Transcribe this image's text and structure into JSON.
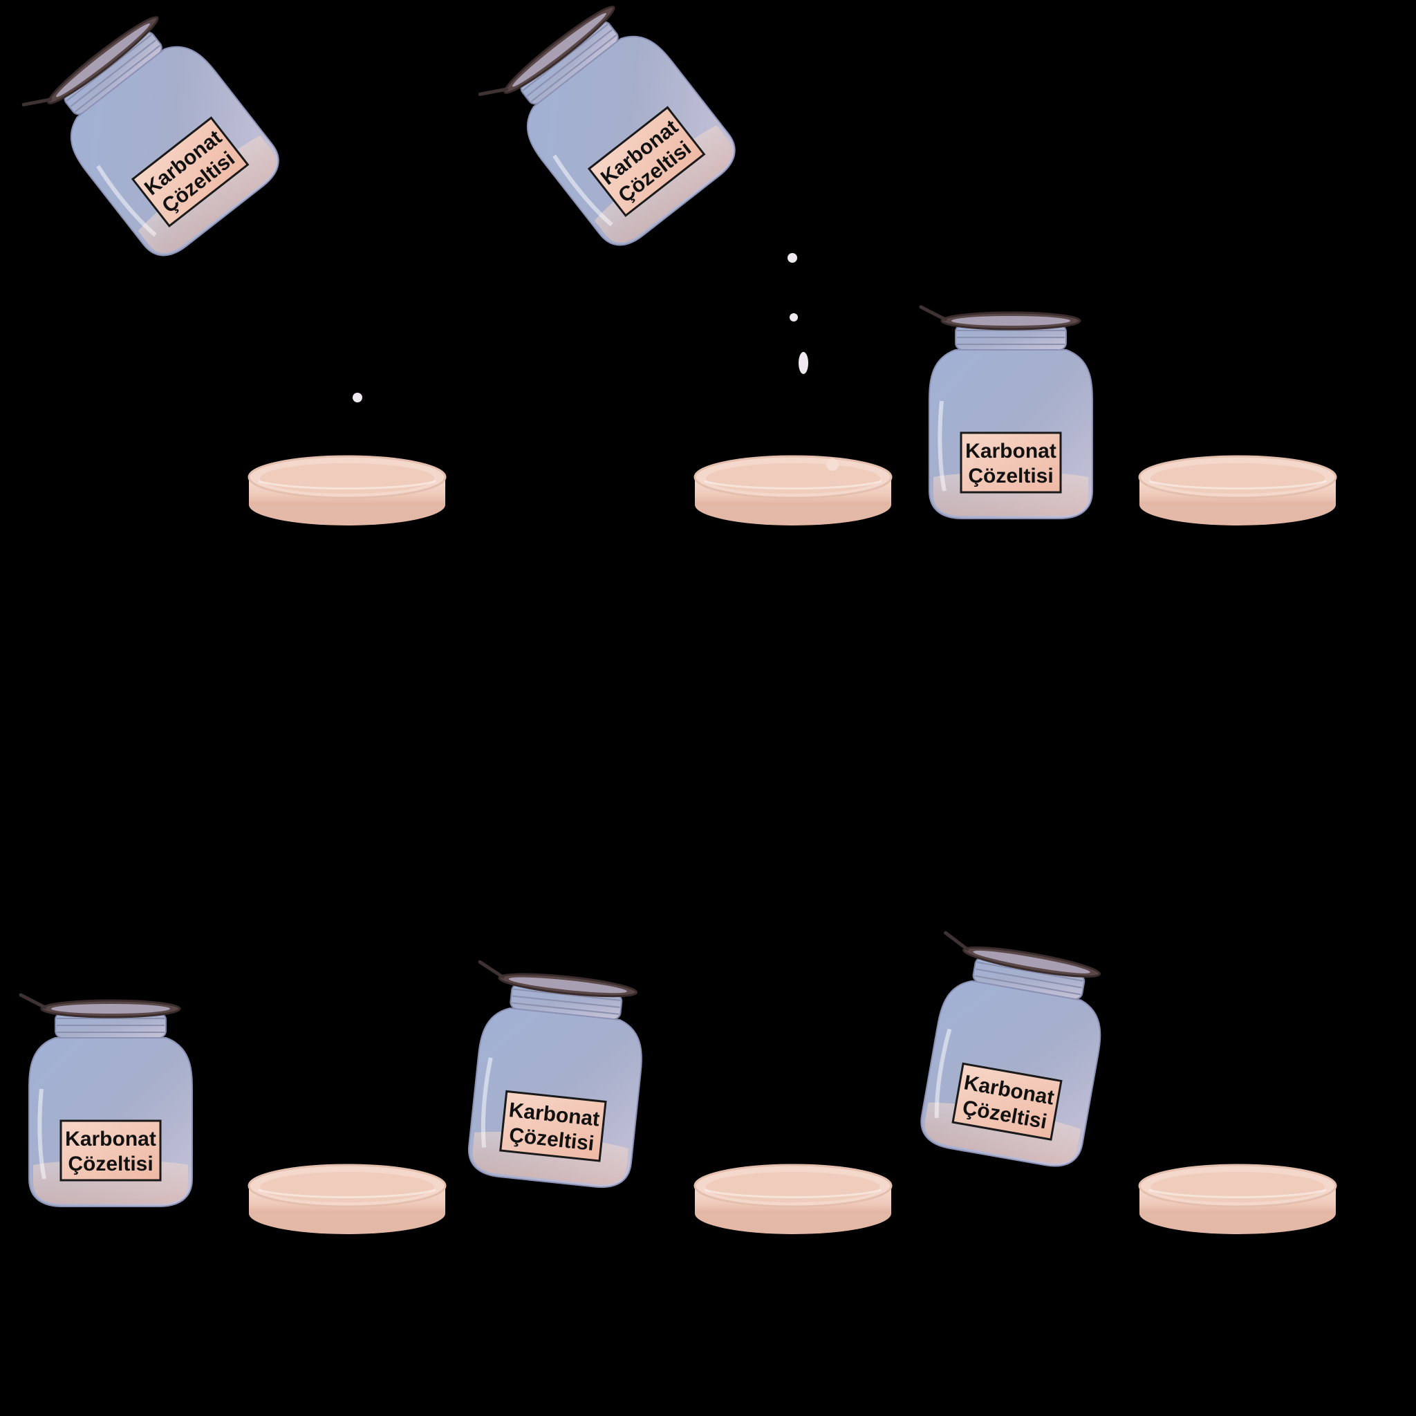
{
  "scene": {
    "background": "#000000",
    "jar_label": {
      "line1": "Karbonat",
      "line2": "Çözeltisi"
    },
    "colors": {
      "glass_top": "#9fb1d6",
      "glass_bottom": "#c9c6df",
      "liquid": "#f1d2c3",
      "label_bg": "#f4c9b8",
      "label_border": "#1a1a1a",
      "lid": "#4a3c3c",
      "dish_top": "#f3d6c8",
      "dish_side": "#e8c0ae",
      "droplet": "#efe8f0"
    }
  },
  "frames": [
    {
      "id": "frame-1",
      "jar_state": "pouring",
      "droplets": 1
    },
    {
      "id": "frame-2",
      "jar_state": "pouring",
      "droplets": 3
    },
    {
      "id": "frame-3",
      "jar_state": "upright",
      "droplets": 0
    },
    {
      "id": "frame-4",
      "jar_state": "upright",
      "droplets": 0
    },
    {
      "id": "frame-5",
      "jar_state": "tilted-slight",
      "droplets": 0
    },
    {
      "id": "frame-6",
      "jar_state": "tilted-more",
      "droplets": 0
    }
  ]
}
